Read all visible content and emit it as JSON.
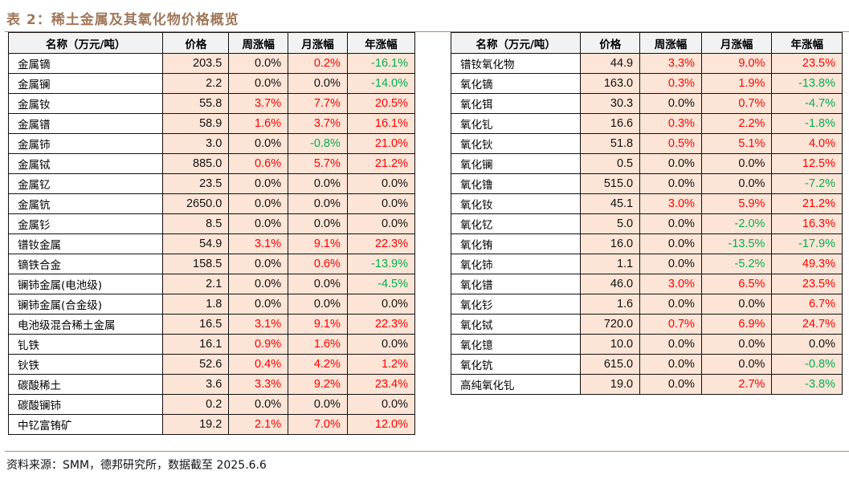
{
  "title": "表 2：稀土金属及其氧化物价格概览",
  "headers": [
    "名称（万元/吨）",
    "价格",
    "周涨幅",
    "月涨幅",
    "年涨幅"
  ],
  "left_table": [
    [
      "金属镝",
      "203.5",
      "0.0%",
      "0.2%",
      "-16.1%"
    ],
    [
      "金属镧",
      "2.2",
      "0.0%",
      "0.0%",
      "-14.0%"
    ],
    [
      "金属钕",
      "55.8",
      "3.7%",
      "7.7%",
      "20.5%"
    ],
    [
      "金属镨",
      "58.9",
      "1.6%",
      "3.7%",
      "16.1%"
    ],
    [
      "金属铈",
      "3.0",
      "0.0%",
      "-0.8%",
      "21.0%"
    ],
    [
      "金属铽",
      "885.0",
      "0.6%",
      "5.7%",
      "21.2%"
    ],
    [
      "金属钇",
      "23.5",
      "0.0%",
      "0.0%",
      "0.0%"
    ],
    [
      "金属钪",
      "2650.0",
      "0.0%",
      "0.0%",
      "0.0%"
    ],
    [
      "金属钐",
      "8.5",
      "0.0%",
      "0.0%",
      "0.0%"
    ],
    [
      "镨钕金属",
      "54.9",
      "3.1%",
      "9.1%",
      "22.3%"
    ],
    [
      "镝铁合金",
      "158.5",
      "0.0%",
      "0.6%",
      "-13.9%"
    ],
    [
      "镧铈金属(电池级)",
      "2.1",
      "0.0%",
      "0.0%",
      "-4.5%"
    ],
    [
      "镧铈金属(合金级)",
      "1.8",
      "0.0%",
      "0.0%",
      "0.0%"
    ],
    [
      "电池级混合稀土金属",
      "16.5",
      "3.1%",
      "9.1%",
      "22.3%"
    ],
    [
      "钆铁",
      "16.1",
      "0.9%",
      "1.6%",
      "0.0%"
    ],
    [
      "钬铁",
      "52.6",
      "0.4%",
      "4.2%",
      "1.2%"
    ],
    [
      "碳酸稀土",
      "3.6",
      "3.3%",
      "9.2%",
      "23.4%"
    ],
    [
      "碳酸镧铈",
      "0.2",
      "0.0%",
      "0.0%",
      "0.0%"
    ],
    [
      "中钇富铕矿",
      "19.2",
      "2.1%",
      "7.0%",
      "12.0%"
    ]
  ],
  "right_table": [
    [
      "镨钕氧化物",
      "44.9",
      "3.3%",
      "9.0%",
      "23.5%"
    ],
    [
      "氧化镝",
      "163.0",
      "0.3%",
      "1.9%",
      "-13.8%"
    ],
    [
      "氧化铒",
      "30.3",
      "0.0%",
      "0.7%",
      "-4.7%"
    ],
    [
      "氧化钆",
      "16.6",
      "0.3%",
      "2.2%",
      "-1.8%"
    ],
    [
      "氧化钬",
      "51.8",
      "0.5%",
      "5.1%",
      "4.0%"
    ],
    [
      "氧化镧",
      "0.5",
      "0.0%",
      "0.0%",
      "12.5%"
    ],
    [
      "氧化镥",
      "515.0",
      "0.0%",
      "0.0%",
      "-7.2%"
    ],
    [
      "氧化钕",
      "45.1",
      "3.0%",
      "5.9%",
      "21.2%"
    ],
    [
      "氧化钇",
      "5.0",
      "0.0%",
      "-2.0%",
      "16.3%"
    ],
    [
      "氧化铕",
      "16.0",
      "0.0%",
      "-13.5%",
      "-17.9%"
    ],
    [
      "氧化铈",
      "1.1",
      "0.0%",
      "-5.2%",
      "49.3%"
    ],
    [
      "氧化镨",
      "46.0",
      "3.0%",
      "6.5%",
      "23.5%"
    ],
    [
      "氧化钐",
      "1.6",
      "0.0%",
      "0.0%",
      "6.7%"
    ],
    [
      "氧化铽",
      "720.0",
      "0.7%",
      "6.9%",
      "24.7%"
    ],
    [
      "氧化镱",
      "10.0",
      "0.0%",
      "0.0%",
      "0.0%"
    ],
    [
      "氧化钪",
      "615.0",
      "0.0%",
      "0.0%",
      "-0.8%"
    ],
    [
      "高纯氧化钆",
      "19.0",
      "0.0%",
      "2.7%",
      "-3.8%"
    ]
  ],
  "source": "资料来源：SMM，德邦研究所，数据截至 2025.6.6",
  "colors": {
    "up": "#ff0000",
    "down": "#00b050",
    "title": "#a0785a",
    "cell": "#fce4d6"
  }
}
